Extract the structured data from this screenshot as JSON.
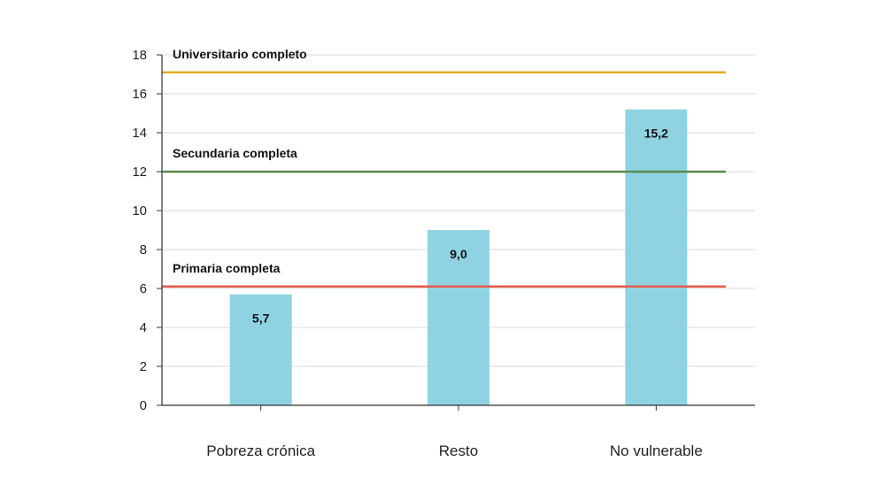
{
  "chart_data": {
    "type": "bar",
    "title": "",
    "xlabel": "",
    "ylabel": "",
    "categories": [
      "Pobreza crónica",
      "Resto",
      "No vulnerable"
    ],
    "values": [
      5.7,
      9.0,
      15.2
    ],
    "data_labels": [
      "5,7",
      "9,0",
      "15,2"
    ],
    "ylim": [
      0,
      18
    ],
    "yticks": [
      0,
      2,
      4,
      6,
      8,
      10,
      12,
      14,
      16,
      18
    ],
    "grid": true,
    "bar_color": "#8fd3e3",
    "reference_lines": [
      {
        "label": "Universitario completo",
        "value": 17.1,
        "color": "#e5ab1f"
      },
      {
        "label": "Secundaria completa",
        "value": 12.0,
        "color": "#5a8a4e"
      },
      {
        "label": "Primaria completa",
        "value": 6.1,
        "color": "#e5594a"
      }
    ]
  }
}
